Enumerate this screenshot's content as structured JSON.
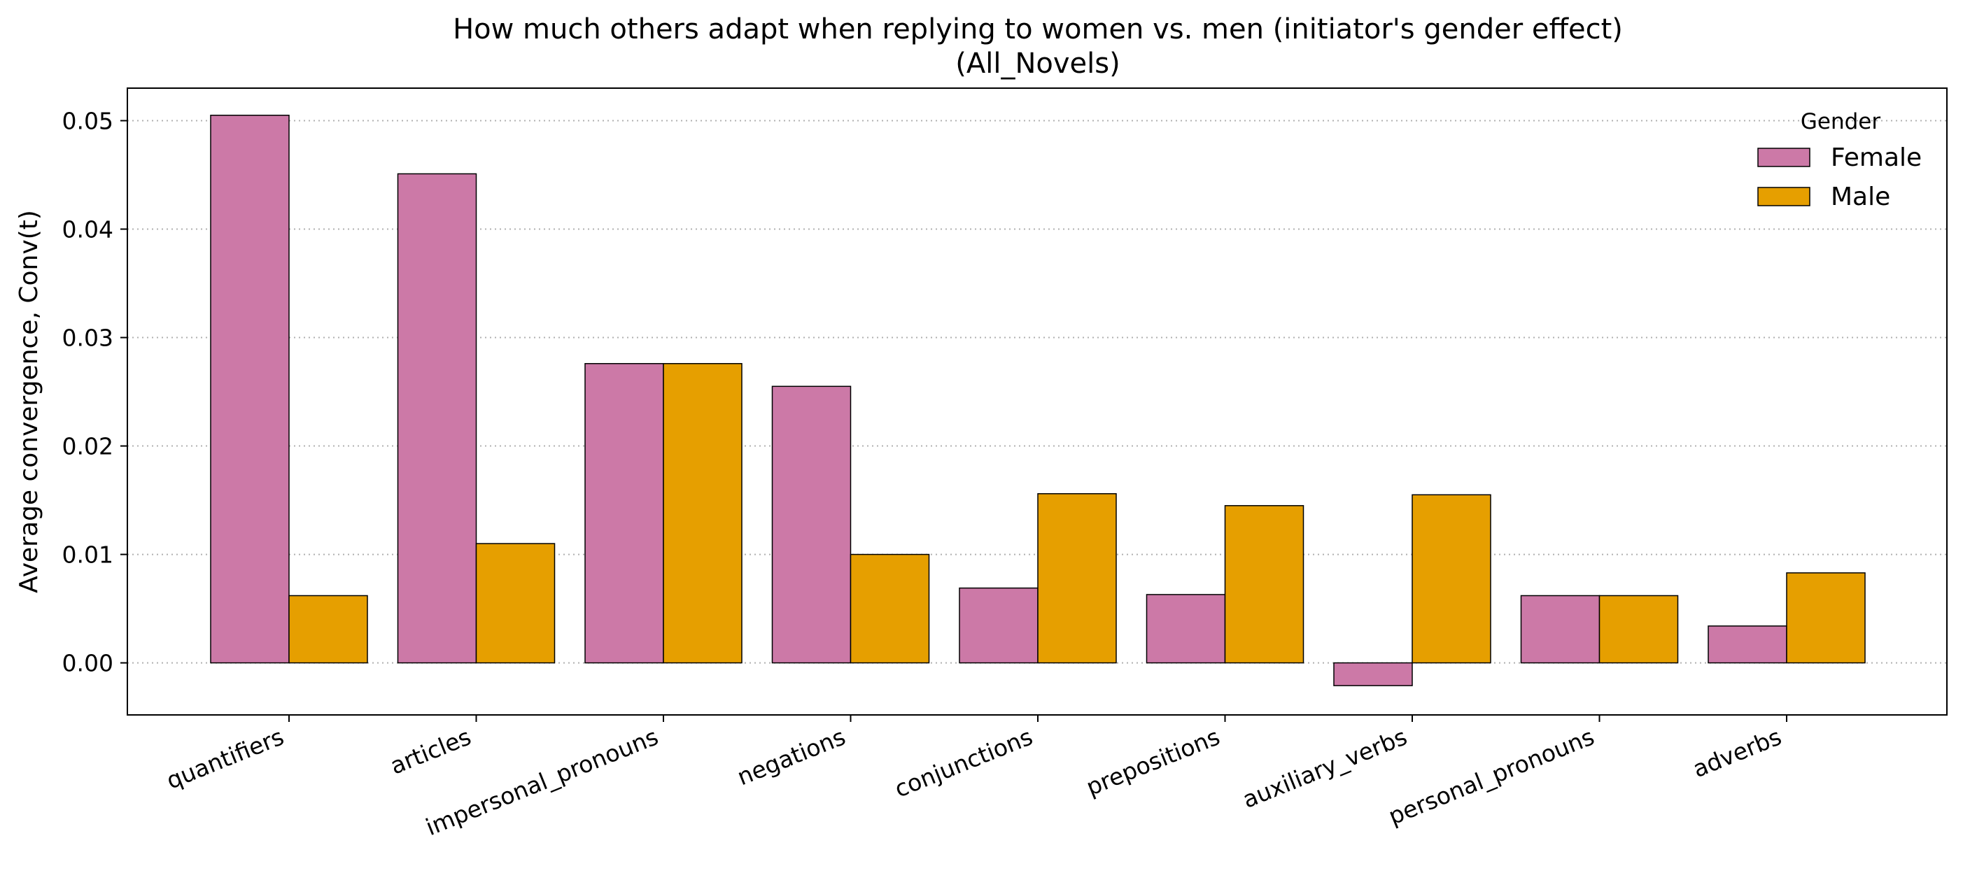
{
  "chart_data": {
    "type": "bar",
    "title": "How much others adapt when replying to women vs. men (initiator's gender effect)",
    "subtitle": "(All_Novels)",
    "xlabel": "",
    "ylabel": "Average convergence, Conv(t)",
    "categories": [
      "quantifiers",
      "articles",
      "impersonal_pronouns",
      "negations",
      "conjunctions",
      "prepositions",
      "auxiliary_verbs",
      "personal_pronouns",
      "adverbs"
    ],
    "series": [
      {
        "name": "Female",
        "color": "#cc79a7",
        "values": [
          0.0505,
          0.0451,
          0.0276,
          0.0255,
          0.0069,
          0.0063,
          -0.0021,
          0.0062,
          0.0034
        ]
      },
      {
        "name": "Male",
        "color": "#e69f00",
        "values": [
          0.0062,
          0.011,
          0.0276,
          0.01,
          0.0156,
          0.0145,
          0.0155,
          0.0062,
          0.0083
        ]
      }
    ],
    "ylim": [
      -0.0048,
      0.053
    ],
    "yticks": [
      "0.00",
      "0.01",
      "0.02",
      "0.03",
      "0.04",
      "0.05"
    ],
    "grid": "y-dotted",
    "legend": {
      "title": "Gender",
      "placement": "top-right"
    }
  }
}
